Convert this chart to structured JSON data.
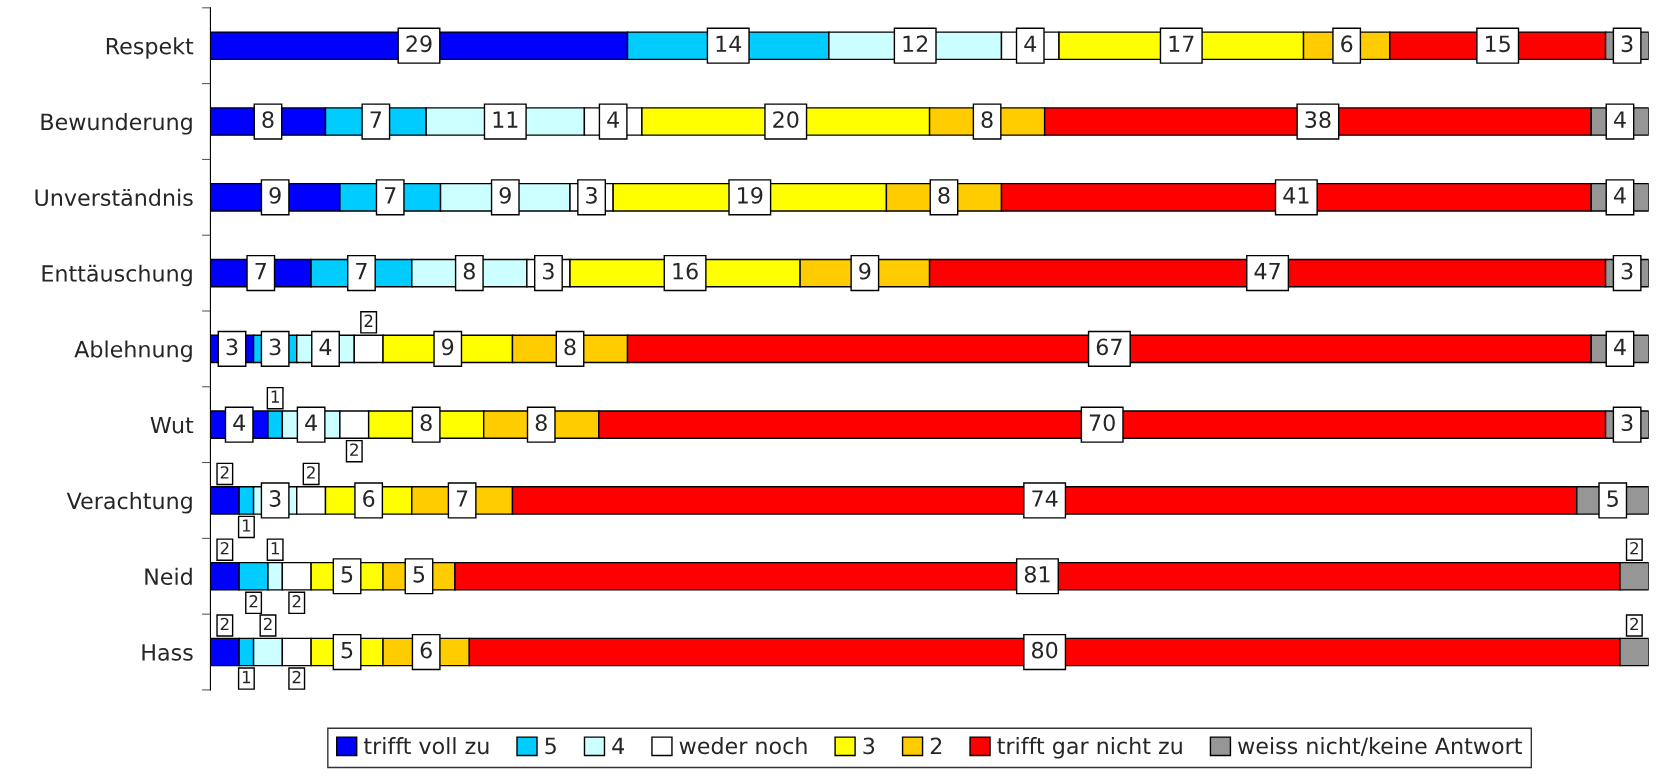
{
  "chart_data": {
    "type": "bar",
    "orientation": "horizontal",
    "stacked": true,
    "data_labels": true,
    "legend": "bottom",
    "grid": false,
    "categories": [
      "Respekt",
      "Bewunderung",
      "Unverständnis",
      "Enttäuschung",
      "Ablehnung",
      "Wut",
      "Verachtung",
      "Neid",
      "Hass"
    ],
    "series": [
      {
        "name": "trifft voll zu",
        "color": "#0000ff",
        "values": [
          29,
          8,
          9,
          7,
          3,
          4,
          2,
          2,
          2
        ]
      },
      {
        "name": "5",
        "color": "#00ccff",
        "values": [
          14,
          7,
          7,
          7,
          3,
          1,
          1,
          2,
          1
        ]
      },
      {
        "name": "4",
        "color": "#ccffff",
        "values": [
          12,
          11,
          9,
          8,
          4,
          4,
          3,
          1,
          2
        ]
      },
      {
        "name": "weder noch",
        "color": "#ffffff",
        "values": [
          4,
          4,
          3,
          3,
          2,
          2,
          2,
          2,
          2
        ]
      },
      {
        "name": "3",
        "color": "#ffff00",
        "values": [
          17,
          20,
          19,
          16,
          9,
          8,
          6,
          5,
          5
        ]
      },
      {
        "name": "2",
        "color": "#ffcc00",
        "values": [
          6,
          8,
          8,
          9,
          8,
          8,
          7,
          5,
          6
        ]
      },
      {
        "name": "trifft gar nicht zu",
        "color": "#ff0000",
        "values": [
          15,
          38,
          41,
          47,
          67,
          70,
          74,
          81,
          80
        ]
      },
      {
        "name": "weiss nicht/keine Antwort",
        "color": "#969696",
        "values": [
          3,
          4,
          4,
          3,
          4,
          3,
          5,
          2,
          2
        ]
      }
    ]
  }
}
